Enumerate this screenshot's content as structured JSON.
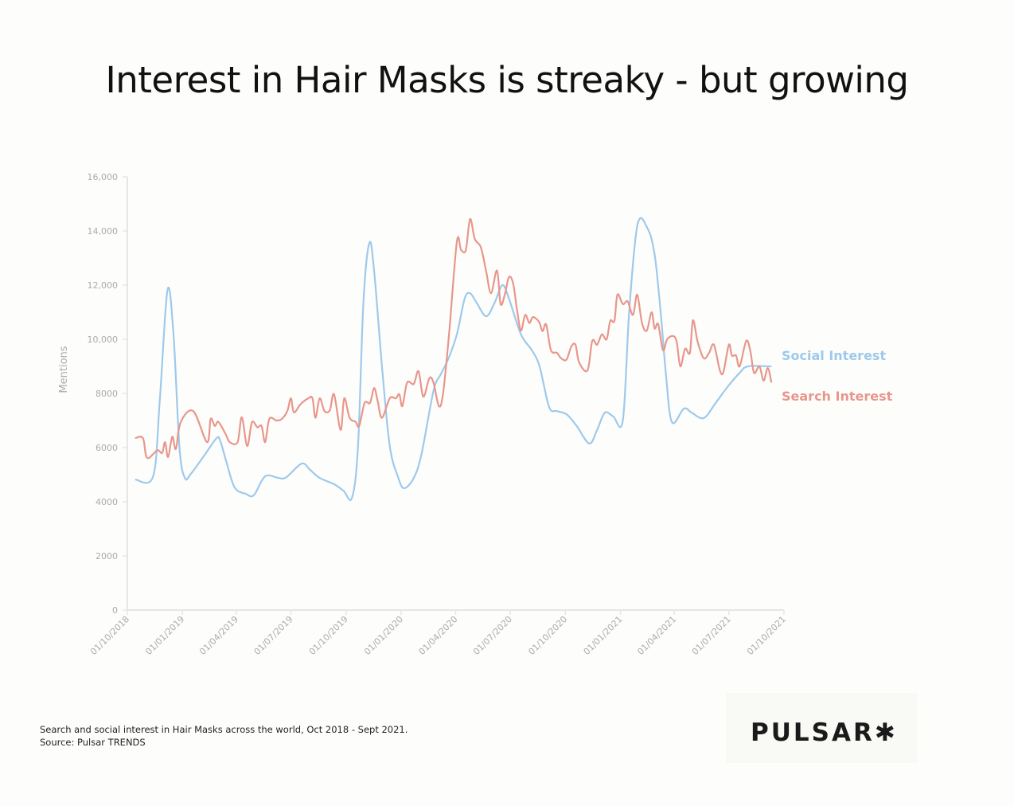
{
  "title": "Interest in Hair Masks is streaky - but growing",
  "footer": {
    "caption": "Search and social interest in Hair Masks across the world, Oct 2018 - Sept 2021.",
    "source": "Source: Pulsar TRENDS"
  },
  "logo": {
    "text": "PULSAR✱"
  },
  "chart_data": {
    "type": "line",
    "title": "",
    "xlabel": "",
    "ylabel": "Mentions",
    "ylim": [
      0,
      16000
    ],
    "xlim": [
      "2018-10-01",
      "2021-10-01"
    ],
    "grid": false,
    "legend_placement": "right (inline labels)",
    "y_ticks": [
      "0",
      "2000",
      "4000",
      "6000",
      "8000",
      "10,000",
      "12,000",
      "14,000",
      "16,000"
    ],
    "y_tick_values": [
      0,
      2000,
      4000,
      6000,
      8000,
      10000,
      12000,
      14000,
      16000
    ],
    "x_ticks": [
      "01/10/2018",
      "01/01/2019",
      "01/04/2019",
      "01/07/2019",
      "01/10/2019",
      "01/01/2020",
      "01/04/2020",
      "01/07/2020",
      "01/10/2020",
      "01/01/2021",
      "01/04/2021",
      "01/07/2021",
      "01/10/2021"
    ],
    "x_tick_dates": [
      "2018-10-01",
      "2019-01-01",
      "2019-04-01",
      "2019-07-01",
      "2019-10-01",
      "2020-01-01",
      "2020-04-01",
      "2020-07-01",
      "2020-10-01",
      "2021-01-01",
      "2021-04-01",
      "2021-07-01",
      "2021-10-01"
    ],
    "series": [
      {
        "name": "Social Interest",
        "color": "#9ec9ec",
        "points": [
          [
            "2018-10-14",
            4820
          ],
          [
            "2018-11-13",
            4940
          ],
          [
            "2018-11-24",
            7700
          ],
          [
            "2018-12-07",
            11820
          ],
          [
            "2018-12-17",
            10200
          ],
          [
            "2018-12-27",
            6000
          ],
          [
            "2019-01-05",
            4880
          ],
          [
            "2019-01-15",
            5030
          ],
          [
            "2019-02-08",
            5760
          ],
          [
            "2019-02-27",
            6350
          ],
          [
            "2019-03-05",
            6250
          ],
          [
            "2019-03-15",
            5500
          ],
          [
            "2019-03-29",
            4530
          ],
          [
            "2019-04-17",
            4290
          ],
          [
            "2019-04-30",
            4240
          ],
          [
            "2019-05-19",
            4940
          ],
          [
            "2019-06-10",
            4880
          ],
          [
            "2019-06-23",
            4900
          ],
          [
            "2019-07-19",
            5410
          ],
          [
            "2019-08-02",
            5180
          ],
          [
            "2019-08-18",
            4880
          ],
          [
            "2019-09-11",
            4650
          ],
          [
            "2019-09-27",
            4400
          ],
          [
            "2019-10-11",
            4150
          ],
          [
            "2019-10-21",
            6050
          ],
          [
            "2019-10-30",
            11350
          ],
          [
            "2019-11-09",
            13560
          ],
          [
            "2019-11-17",
            12500
          ],
          [
            "2019-11-30",
            9000
          ],
          [
            "2019-12-13",
            6060
          ],
          [
            "2019-12-27",
            4900
          ],
          [
            "2020-01-06",
            4500
          ],
          [
            "2020-01-22",
            4880
          ],
          [
            "2020-02-04",
            5760
          ],
          [
            "2020-02-24",
            8100
          ],
          [
            "2020-03-07",
            8700
          ],
          [
            "2020-03-20",
            9290
          ],
          [
            "2020-04-03",
            10180
          ],
          [
            "2020-04-16",
            11500
          ],
          [
            "2020-04-25",
            11700
          ],
          [
            "2020-05-06",
            11350
          ],
          [
            "2020-05-22",
            10850
          ],
          [
            "2020-06-05",
            11350
          ],
          [
            "2020-06-18",
            12000
          ],
          [
            "2020-06-29",
            11500
          ],
          [
            "2020-07-19",
            10180
          ],
          [
            "2020-08-06",
            9600
          ],
          [
            "2020-08-19",
            9000
          ],
          [
            "2020-09-04",
            7500
          ],
          [
            "2020-09-17",
            7350
          ],
          [
            "2020-10-03",
            7230
          ],
          [
            "2020-10-20",
            6800
          ],
          [
            "2020-11-10",
            6150
          ],
          [
            "2020-11-23",
            6650
          ],
          [
            "2020-12-06",
            7290
          ],
          [
            "2020-12-20",
            7150
          ],
          [
            "2021-01-05",
            7000
          ],
          [
            "2021-01-15",
            10800
          ],
          [
            "2021-01-26",
            13700
          ],
          [
            "2021-02-03",
            14470
          ],
          [
            "2021-02-14",
            14150
          ],
          [
            "2021-02-22",
            13700
          ],
          [
            "2021-03-01",
            12820
          ],
          [
            "2021-03-10",
            10800
          ],
          [
            "2021-03-18",
            8700
          ],
          [
            "2021-03-28",
            6940
          ],
          [
            "2021-04-17",
            7440
          ],
          [
            "2021-04-30",
            7290
          ],
          [
            "2021-05-20",
            7090
          ],
          [
            "2021-06-09",
            7650
          ],
          [
            "2021-06-29",
            8250
          ],
          [
            "2021-07-19",
            8760
          ],
          [
            "2021-08-02",
            9000
          ],
          [
            "2021-09-10",
            9000
          ]
        ]
      },
      {
        "name": "Search Interest",
        "color": "#e8968c",
        "points": [
          [
            "2018-10-14",
            6350
          ],
          [
            "2018-10-27",
            6350
          ],
          [
            "2018-11-03",
            5620
          ],
          [
            "2018-11-20",
            5900
          ],
          [
            "2018-11-28",
            5800
          ],
          [
            "2018-12-03",
            6200
          ],
          [
            "2018-12-08",
            5650
          ],
          [
            "2018-12-15",
            6400
          ],
          [
            "2018-12-21",
            5950
          ],
          [
            "2018-12-29",
            6940
          ],
          [
            "2019-01-19",
            7350
          ],
          [
            "2019-02-11",
            6200
          ],
          [
            "2019-02-17",
            7060
          ],
          [
            "2019-02-24",
            6800
          ],
          [
            "2019-03-02",
            6950
          ],
          [
            "2019-03-14",
            6500
          ],
          [
            "2019-03-21",
            6200
          ],
          [
            "2019-04-03",
            6200
          ],
          [
            "2019-04-10",
            7120
          ],
          [
            "2019-04-19",
            6060
          ],
          [
            "2019-04-27",
            6940
          ],
          [
            "2019-05-06",
            6750
          ],
          [
            "2019-05-13",
            6800
          ],
          [
            "2019-05-19",
            6200
          ],
          [
            "2019-05-26",
            7060
          ],
          [
            "2019-06-07",
            7000
          ],
          [
            "2019-06-16",
            7060
          ],
          [
            "2019-06-25",
            7350
          ],
          [
            "2019-07-01",
            7820
          ],
          [
            "2019-07-06",
            7300
          ],
          [
            "2019-07-17",
            7600
          ],
          [
            "2019-07-30",
            7820
          ],
          [
            "2019-08-06",
            7820
          ],
          [
            "2019-08-11",
            7100
          ],
          [
            "2019-08-18",
            7820
          ],
          [
            "2019-08-26",
            7350
          ],
          [
            "2019-09-04",
            7380
          ],
          [
            "2019-09-11",
            7970
          ],
          [
            "2019-09-22",
            6650
          ],
          [
            "2019-09-28",
            7820
          ],
          [
            "2019-10-07",
            7100
          ],
          [
            "2019-10-17",
            6950
          ],
          [
            "2019-10-23",
            6800
          ],
          [
            "2019-11-01",
            7650
          ],
          [
            "2019-11-10",
            7650
          ],
          [
            "2019-11-17",
            8200
          ],
          [
            "2019-11-23",
            7700
          ],
          [
            "2019-11-30",
            7100
          ],
          [
            "2019-12-13",
            7820
          ],
          [
            "2019-12-23",
            7820
          ],
          [
            "2019-12-29",
            7970
          ],
          [
            "2020-01-03",
            7530
          ],
          [
            "2020-01-11",
            8400
          ],
          [
            "2020-01-22",
            8350
          ],
          [
            "2020-01-30",
            8820
          ],
          [
            "2020-02-07",
            7880
          ],
          [
            "2020-02-17",
            8560
          ],
          [
            "2020-02-24",
            8400
          ],
          [
            "2020-03-04",
            7530
          ],
          [
            "2020-03-11",
            8000
          ],
          [
            "2020-03-21",
            10200
          ],
          [
            "2020-04-03",
            13600
          ],
          [
            "2020-04-10",
            13300
          ],
          [
            "2020-04-18",
            13300
          ],
          [
            "2020-04-25",
            14440
          ],
          [
            "2020-05-03",
            13700
          ],
          [
            "2020-05-13",
            13400
          ],
          [
            "2020-05-22",
            12500
          ],
          [
            "2020-05-30",
            11700
          ],
          [
            "2020-06-09",
            12540
          ],
          [
            "2020-06-15",
            11300
          ],
          [
            "2020-06-22",
            11650
          ],
          [
            "2020-06-29",
            12300
          ],
          [
            "2020-07-06",
            12050
          ],
          [
            "2020-07-13",
            11000
          ],
          [
            "2020-07-19",
            10320
          ],
          [
            "2020-07-26",
            10900
          ],
          [
            "2020-08-02",
            10600
          ],
          [
            "2020-08-08",
            10820
          ],
          [
            "2020-08-18",
            10650
          ],
          [
            "2020-08-24",
            10300
          ],
          [
            "2020-08-30",
            10550
          ],
          [
            "2020-09-07",
            9600
          ],
          [
            "2020-09-17",
            9500
          ],
          [
            "2020-09-24",
            9300
          ],
          [
            "2020-10-03",
            9250
          ],
          [
            "2020-10-11",
            9730
          ],
          [
            "2020-10-18",
            9800
          ],
          [
            "2020-10-24",
            9150
          ],
          [
            "2020-11-07",
            8850
          ],
          [
            "2020-11-15",
            9940
          ],
          [
            "2020-11-23",
            9800
          ],
          [
            "2020-12-01",
            10180
          ],
          [
            "2020-12-09",
            10000
          ],
          [
            "2020-12-15",
            10680
          ],
          [
            "2020-12-22",
            10680
          ],
          [
            "2020-12-27",
            11650
          ],
          [
            "2021-01-05",
            11300
          ],
          [
            "2021-01-13",
            11400
          ],
          [
            "2021-01-22",
            10900
          ],
          [
            "2021-01-29",
            11650
          ],
          [
            "2021-02-06",
            10600
          ],
          [
            "2021-02-14",
            10320
          ],
          [
            "2021-02-22",
            11000
          ],
          [
            "2021-02-27",
            10400
          ],
          [
            "2021-03-05",
            10560
          ],
          [
            "2021-03-13",
            9600
          ],
          [
            "2021-03-20",
            10000
          ],
          [
            "2021-03-30",
            10120
          ],
          [
            "2021-04-05",
            9900
          ],
          [
            "2021-04-11",
            9000
          ],
          [
            "2021-04-19",
            9650
          ],
          [
            "2021-04-27",
            9500
          ],
          [
            "2021-05-02",
            10700
          ],
          [
            "2021-05-10",
            9900
          ],
          [
            "2021-05-20",
            9300
          ],
          [
            "2021-05-29",
            9500
          ],
          [
            "2021-06-06",
            9800
          ],
          [
            "2021-06-16",
            8850
          ],
          [
            "2021-06-22",
            8800
          ],
          [
            "2021-07-01",
            9800
          ],
          [
            "2021-07-06",
            9400
          ],
          [
            "2021-07-13",
            9400
          ],
          [
            "2021-07-19",
            9000
          ],
          [
            "2021-07-30",
            9940
          ],
          [
            "2021-08-06",
            9550
          ],
          [
            "2021-08-12",
            8760
          ],
          [
            "2021-08-21",
            9000
          ],
          [
            "2021-08-28",
            8470
          ],
          [
            "2021-09-04",
            8940
          ],
          [
            "2021-09-10",
            8400
          ]
        ]
      }
    ]
  }
}
